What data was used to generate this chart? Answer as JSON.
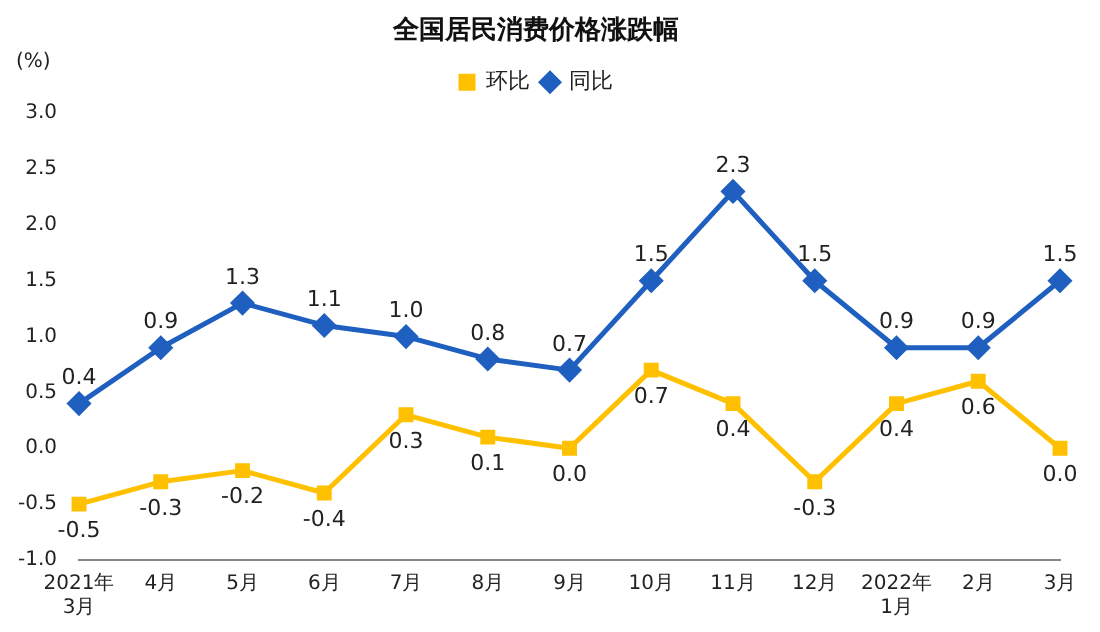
{
  "chart_data": {
    "type": "line",
    "title": "全国居民消费价格涨跌幅",
    "ylabel": "(%)",
    "categories": [
      "2021年\n3月",
      "4月",
      "5月",
      "6月",
      "7月",
      "8月",
      "9月",
      "10月",
      "11月",
      "12月",
      "2022年\n1月",
      "2月",
      "3月"
    ],
    "series": [
      {
        "name": "同比",
        "color": "#1f5fbf",
        "marker": "diamond",
        "values": [
          0.4,
          0.9,
          1.3,
          1.1,
          1.0,
          0.8,
          0.7,
          1.5,
          2.3,
          1.5,
          0.9,
          0.9,
          1.5
        ],
        "value_labels": [
          "0.4",
          "0.9",
          "1.3",
          "1.1",
          "1.0",
          "0.8",
          "0.7",
          "1.5",
          "2.3",
          "1.5",
          "0.9",
          "0.9",
          "1.5"
        ]
      },
      {
        "name": "环比",
        "color": "#ffc000",
        "marker": "square",
        "values": [
          -0.5,
          -0.3,
          -0.2,
          -0.4,
          0.3,
          0.1,
          0.0,
          0.7,
          0.4,
          -0.3,
          0.4,
          0.6,
          0.0
        ],
        "value_labels": [
          "-0.5",
          "-0.3",
          "-0.2",
          "-0.4",
          "0.3",
          "0.1",
          "0.0",
          "0.7",
          "0.4",
          "-0.3",
          "0.4",
          "0.6",
          "0.0"
        ]
      }
    ],
    "ylim": [
      -1.0,
      3.0
    ],
    "yticks": [
      {
        "value": -1,
        "label": "-1.0"
      },
      {
        "value": -0.5,
        "label": "-0.5"
      },
      {
        "value": 0,
        "label": "0.0"
      },
      {
        "value": 0.5,
        "label": "0.5"
      },
      {
        "value": 1,
        "label": "1.0"
      },
      {
        "value": 1.5,
        "label": "1.5"
      },
      {
        "value": 2,
        "label": "2.0"
      },
      {
        "value": 2.5,
        "label": "2.5"
      },
      {
        "value": 3,
        "label": "3.0"
      }
    ],
    "grid": false,
    "legend": "top",
    "line_style": "solid"
  }
}
